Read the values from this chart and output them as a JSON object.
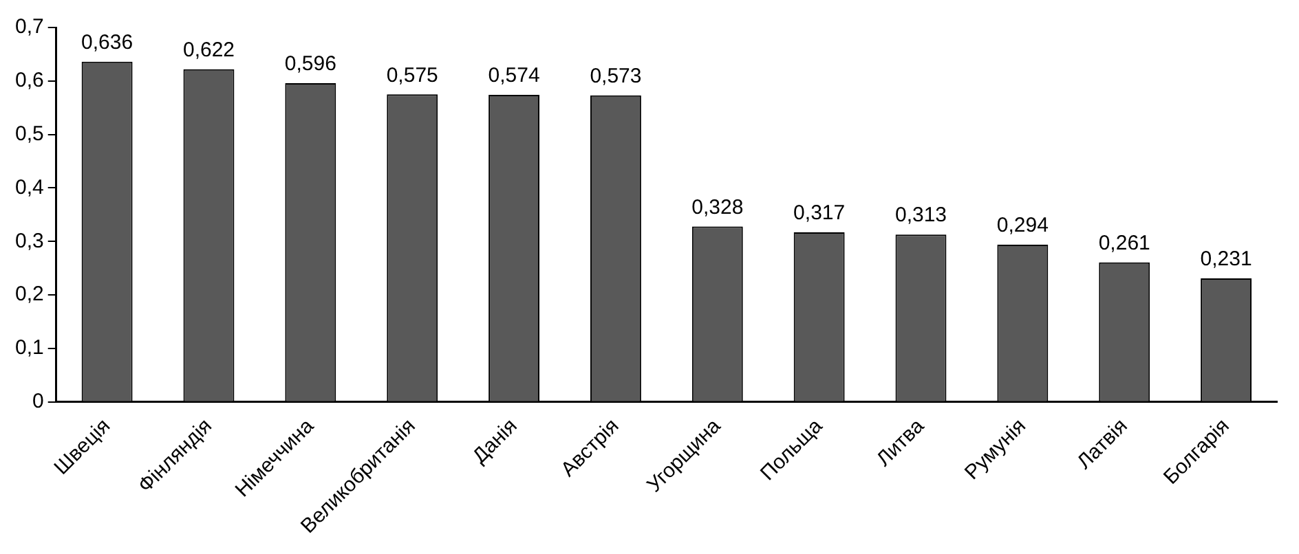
{
  "chart_data": {
    "type": "bar",
    "categories": [
      "Швеція",
      "Фінляндія",
      "Німеччина",
      "Великобританія",
      "Данія",
      "Австрія",
      "Угорщина",
      "Польща",
      "Литва",
      "Румунія",
      "Латвія",
      "Болгарія"
    ],
    "values": [
      0.636,
      0.622,
      0.596,
      0.575,
      0.574,
      0.573,
      0.328,
      0.317,
      0.313,
      0.294,
      0.261,
      0.231
    ],
    "value_labels": [
      "0,636",
      "0,622",
      "0,596",
      "0,575",
      "0,574",
      "0,573",
      "0,328",
      "0,317",
      "0,313",
      "0,294",
      "0,261",
      "0,231"
    ],
    "color": "#595959",
    "ylim": [
      0,
      0.7
    ],
    "yticks": [
      0,
      {
        "value": 0.1,
        "label": "0,1"
      },
      {
        "value": 0.2,
        "label": "0,2"
      },
      {
        "value": 0.3,
        "label": "0,3"
      },
      {
        "value": 0.4,
        "label": "0,4"
      },
      {
        "value": 0.5,
        "label": "0,5"
      },
      {
        "value": 0.6,
        "label": "0,6"
      },
      {
        "value": 0.7,
        "label": "0,7"
      }
    ],
    "grid": false,
    "legend": false
  }
}
